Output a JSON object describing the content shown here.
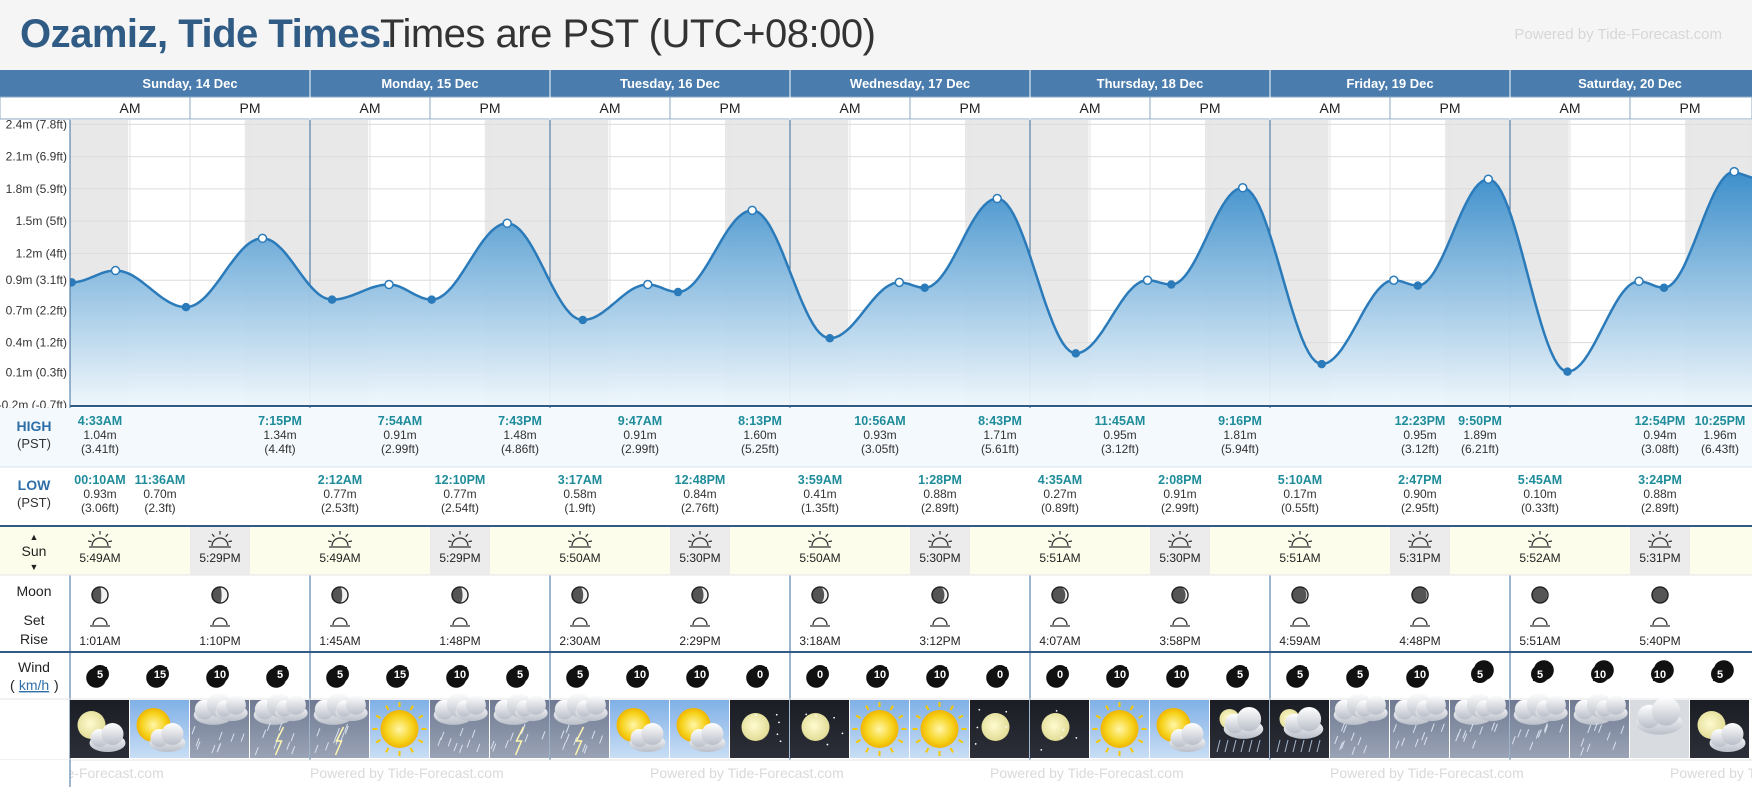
{
  "title": {
    "place": "Ozamiz, Tide Times.",
    "timezone": "Times are PST (UTC+08:00)",
    "powered": "Powered by Tide-Forecast.com"
  },
  "footer_watermark": "Powered by Tide-Forecast.com",
  "colors": {
    "header_blue": "#4a7cad",
    "curve": "#2b7bba",
    "fill_top": "#3d8fcb",
    "fill_bottom": "#f0f7fc",
    "label_teal": "#1e8c9a",
    "night": "#e8e8e8",
    "sun_row": "#fdfdec"
  },
  "days": [
    {
      "label": "Sunday, 14 Dec"
    },
    {
      "label": "Monday, 15 Dec"
    },
    {
      "label": "Tuesday, 16 Dec"
    },
    {
      "label": "Wednesday, 17 Dec"
    },
    {
      "label": "Thursday, 18 Dec"
    },
    {
      "label": "Friday, 19 Dec"
    },
    {
      "label": "Saturday, 20 Dec"
    }
  ],
  "ampm": [
    "AM",
    "PM"
  ],
  "row_labels": {
    "high": "HIGH",
    "high_tz": "(PST)",
    "low": "LOW",
    "low_tz": "(PST)",
    "sun": "Sun",
    "moon": "Moon",
    "set": "Set",
    "rise": "Rise",
    "wind": "Wind",
    "wind_unit": "km/h"
  },
  "chart_data": {
    "type": "area",
    "title": "",
    "xlabel": "",
    "ylabel": "",
    "ytick_labels": [
      "2.4m (7.8ft)",
      "2.1m (6.9ft)",
      "1.8m (5.9ft)",
      "1.5m (5ft)",
      "1.2m (4ft)",
      "0.9m (3.1ft)",
      "0.7m (2.2ft)",
      "0.4m (1.2ft)",
      "0.1m (0.3ft)",
      "-0.2m (-0.7ft)"
    ],
    "ytick_values": [
      2.4,
      2.1,
      1.8,
      1.5,
      1.2,
      0.95,
      0.67,
      0.37,
      0.09,
      -0.21
    ],
    "ylim": [
      -0.22,
      2.45
    ],
    "x_unit": "hours from 14 Dec 00:00 PST",
    "points": [
      {
        "t": "00:00",
        "v": 0.94,
        "kind": "start"
      },
      {
        "t": "00:10AM",
        "v": 0.93,
        "kind": "low"
      },
      {
        "t": "4:33AM",
        "v": 1.04,
        "kind": "high"
      },
      {
        "t": "11:36AM",
        "v": 0.7,
        "kind": "low"
      },
      {
        "t": "7:15PM",
        "v": 1.34,
        "kind": "high"
      },
      {
        "t": "2:12AM",
        "v": 0.77,
        "kind": "low"
      },
      {
        "t": "7:54AM",
        "v": 0.91,
        "kind": "high"
      },
      {
        "t": "12:10PM",
        "v": 0.77,
        "kind": "low"
      },
      {
        "t": "7:43PM",
        "v": 1.48,
        "kind": "high"
      },
      {
        "t": "3:17AM",
        "v": 0.58,
        "kind": "low"
      },
      {
        "t": "9:47AM",
        "v": 0.91,
        "kind": "high"
      },
      {
        "t": "12:48PM",
        "v": 0.84,
        "kind": "low"
      },
      {
        "t": "8:13PM",
        "v": 1.6,
        "kind": "high"
      },
      {
        "t": "3:59AM",
        "v": 0.41,
        "kind": "low"
      },
      {
        "t": "10:56AM",
        "v": 0.93,
        "kind": "high"
      },
      {
        "t": "1:28PM",
        "v": 0.88,
        "kind": "low"
      },
      {
        "t": "8:43PM",
        "v": 1.71,
        "kind": "high"
      },
      {
        "t": "4:35AM",
        "v": 0.27,
        "kind": "low"
      },
      {
        "t": "11:45AM",
        "v": 0.95,
        "kind": "high"
      },
      {
        "t": "2:08PM",
        "v": 0.91,
        "kind": "low"
      },
      {
        "t": "9:16PM",
        "v": 1.81,
        "kind": "high"
      },
      {
        "t": "5:10AM",
        "v": 0.17,
        "kind": "low"
      },
      {
        "t": "12:23PM",
        "v": 0.95,
        "kind": "high"
      },
      {
        "t": "2:47PM",
        "v": 0.9,
        "kind": "low"
      },
      {
        "t": "9:50PM",
        "v": 1.89,
        "kind": "high"
      },
      {
        "t": "5:45AM",
        "v": 0.1,
        "kind": "low"
      },
      {
        "t": "12:54PM",
        "v": 0.94,
        "kind": "high"
      },
      {
        "t": "3:24PM",
        "v": 0.88,
        "kind": "low"
      },
      {
        "t": "10:25PM",
        "v": 1.96,
        "kind": "high"
      }
    ],
    "point_hours": [
      0,
      0.17,
      4.55,
      11.6,
      19.25,
      26.2,
      31.9,
      36.17,
      43.72,
      51.28,
      57.78,
      60.8,
      68.22,
      75.98,
      82.93,
      85.47,
      92.72,
      100.58,
      107.75,
      110.13,
      117.27,
      125.17,
      132.38,
      134.78,
      141.83,
      149.75,
      156.9,
      159.4,
      166.42
    ],
    "sunrise_hours": [
      5.82,
      29.82,
      53.83,
      77.83,
      101.85,
      125.85,
      149.87
    ],
    "sunset_hours": [
      17.48,
      41.48,
      65.5,
      89.5,
      113.5,
      137.52,
      161.52
    ]
  },
  "high_table": [
    [
      {
        "time": "4:33AM",
        "m": "1.04m",
        "ft": "(3.41ft)"
      },
      {
        "time": "7:15PM",
        "m": "1.34m",
        "ft": "(4.4ft)"
      }
    ],
    [
      {
        "time": "7:54AM",
        "m": "0.91m",
        "ft": "(2.99ft)"
      },
      {
        "time": "7:43PM",
        "m": "1.48m",
        "ft": "(4.86ft)"
      }
    ],
    [
      {
        "time": "9:47AM",
        "m": "0.91m",
        "ft": "(2.99ft)"
      },
      {
        "time": "8:13PM",
        "m": "1.60m",
        "ft": "(5.25ft)"
      }
    ],
    [
      {
        "time": "10:56AM",
        "m": "0.93m",
        "ft": "(3.05ft)"
      },
      {
        "time": "8:43PM",
        "m": "1.71m",
        "ft": "(5.61ft)"
      }
    ],
    [
      {
        "time": "11:45AM",
        "m": "0.95m",
        "ft": "(3.12ft)"
      },
      {
        "time": "9:16PM",
        "m": "1.81m",
        "ft": "(5.94ft)"
      }
    ],
    [
      {
        "time": "12:23PM",
        "m": "0.95m",
        "ft": "(3.12ft)"
      },
      {
        "time": "9:50PM",
        "m": "1.89m",
        "ft": "(6.21ft)"
      }
    ],
    [
      {
        "time": "12:54PM",
        "m": "0.94m",
        "ft": "(3.08ft)"
      },
      {
        "time": "10:25PM",
        "m": "1.96m",
        "ft": "(6.43ft)"
      }
    ]
  ],
  "high_slots": [
    [
      0,
      3
    ],
    [
      1,
      3
    ],
    [
      1,
      3
    ],
    [
      1,
      3
    ],
    [
      1,
      3
    ],
    [
      2,
      3
    ],
    [
      2,
      3
    ]
  ],
  "low_table": [
    [
      {
        "time": "00:10AM",
        "m": "0.93m",
        "ft": "(3.06ft)"
      },
      {
        "time": "11:36AM",
        "m": "0.70m",
        "ft": "(2.3ft)"
      }
    ],
    [
      {
        "time": "2:12AM",
        "m": "0.77m",
        "ft": "(2.53ft)"
      },
      {
        "time": "12:10PM",
        "m": "0.77m",
        "ft": "(2.54ft)"
      }
    ],
    [
      {
        "time": "3:17AM",
        "m": "0.58m",
        "ft": "(1.9ft)"
      },
      {
        "time": "12:48PM",
        "m": "0.84m",
        "ft": "(2.76ft)"
      }
    ],
    [
      {
        "time": "3:59AM",
        "m": "0.41m",
        "ft": "(1.35ft)"
      },
      {
        "time": "1:28PM",
        "m": "0.88m",
        "ft": "(2.89ft)"
      }
    ],
    [
      {
        "time": "4:35AM",
        "m": "0.27m",
        "ft": "(0.89ft)"
      },
      {
        "time": "2:08PM",
        "m": "0.91m",
        "ft": "(2.99ft)"
      }
    ],
    [
      {
        "time": "5:10AM",
        "m": "0.17m",
        "ft": "(0.55ft)"
      },
      {
        "time": "2:47PM",
        "m": "0.90m",
        "ft": "(2.95ft)"
      }
    ],
    [
      {
        "time": "5:45AM",
        "m": "0.10m",
        "ft": "(0.33ft)"
      },
      {
        "time": "3:24PM",
        "m": "0.88m",
        "ft": "(2.89ft)"
      }
    ]
  ],
  "low_slots": [
    [
      0,
      1
    ],
    [
      0,
      2
    ],
    [
      0,
      2
    ],
    [
      0,
      2
    ],
    [
      0,
      2
    ],
    [
      0,
      2
    ],
    [
      0,
      2
    ]
  ],
  "sun": [
    {
      "rise": "5:49AM",
      "set": "5:29PM"
    },
    {
      "rise": "5:49AM",
      "set": "5:29PM"
    },
    {
      "rise": "5:50AM",
      "set": "5:30PM"
    },
    {
      "rise": "5:50AM",
      "set": "5:30PM"
    },
    {
      "rise": "5:51AM",
      "set": "5:30PM"
    },
    {
      "rise": "5:51AM",
      "set": "5:31PM"
    },
    {
      "rise": "5:52AM",
      "set": "5:31PM"
    }
  ],
  "moon": [
    {
      "rise": "1:01AM",
      "set": "1:10PM"
    },
    {
      "rise": "1:45AM",
      "set": "1:48PM"
    },
    {
      "rise": "2:30AM",
      "set": "2:29PM"
    },
    {
      "rise": "3:18AM",
      "set": "3:12PM"
    },
    {
      "rise": "4:07AM",
      "set": "3:58PM"
    },
    {
      "rise": "4:59AM",
      "set": "4:48PM"
    },
    {
      "rise": "5:51AM",
      "set": "5:40PM"
    }
  ],
  "moon_phase_lit": [
    0.42,
    0.36,
    0.3,
    0.24,
    0.17,
    0.1,
    0.05
  ],
  "wind": [
    5,
    15,
    10,
    5,
    5,
    15,
    10,
    5,
    5,
    10,
    10,
    0,
    0,
    10,
    10,
    0,
    0,
    10,
    10,
    5,
    5,
    5,
    10,
    5,
    5,
    10,
    10,
    5
  ],
  "wind_dir_up": [
    false,
    false,
    false,
    false,
    false,
    false,
    false,
    false,
    false,
    false,
    false,
    false,
    false,
    false,
    false,
    false,
    false,
    false,
    false,
    false,
    false,
    false,
    false,
    true,
    true,
    true,
    true,
    true
  ],
  "weather": [
    "partly-cloudy-night",
    "partly-sunny",
    "rain",
    "thunderstorm",
    "thunderstorm",
    "sunny",
    "rain",
    "thunderstorm",
    "thunderstorm",
    "partly-sunny",
    "partly-sunny",
    "clear-night",
    "clear-night",
    "sunny",
    "sunny",
    "clear-night",
    "clear-night",
    "sunny",
    "partly-sunny",
    "cloudy-rain-night",
    "cloudy-rain-night",
    "rain",
    "rain",
    "rain",
    "rain",
    "rain",
    "cloudy",
    "partly-cloudy-night"
  ]
}
